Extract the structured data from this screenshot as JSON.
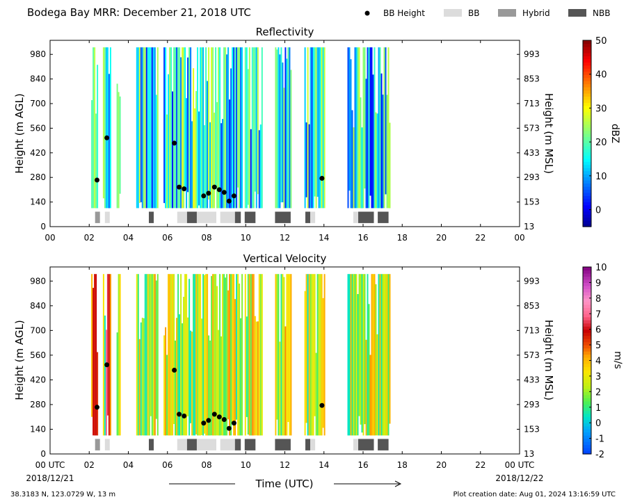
{
  "header": {
    "title": "Bodega Bay MRR:  December 21, 2018 UTC",
    "legend": [
      {
        "label": "BB Height",
        "kind": "dot",
        "color": "#000000"
      },
      {
        "label": "BB",
        "kind": "box",
        "color": "#dcdcdc"
      },
      {
        "label": "Hybrid",
        "kind": "box",
        "color": "#999999"
      },
      {
        "label": "NBB",
        "kind": "box",
        "color": "#555555"
      }
    ]
  },
  "footer": {
    "location": "38.3183 N, 123.0729 W, 13 m",
    "creation": "Plot creation date: Aug 01, 2024 13:16:59 UTC",
    "xlabel": "Time (UTC)",
    "date_left": "2018/12/21",
    "date_right": "2018/12/22"
  },
  "axes": {
    "x_ticks": [
      "00",
      "02",
      "04",
      "06",
      "08",
      "10",
      "12",
      "14",
      "16",
      "18",
      "20",
      "22",
      "00"
    ],
    "x_ticks_bottom": [
      "00 UTC",
      "02",
      "04",
      "06",
      "08",
      "10",
      "12",
      "14",
      "16",
      "18",
      "20",
      "22",
      "00 UTC"
    ],
    "y_ticks_left": [
      "0",
      "140",
      "280",
      "420",
      "560",
      "700",
      "840",
      "980"
    ],
    "y_ticks_right": [
      "13",
      "153",
      "293",
      "433",
      "573",
      "713",
      "853",
      "993"
    ],
    "ylabel_left": "Height (m AGL)",
    "ylabel_right": "Height (m MSL)"
  },
  "chart_data": [
    {
      "type": "heatmap",
      "title": "Reflectivity",
      "xlabel": "Time (UTC)",
      "ylabel": "Height (m AGL)",
      "ylabel_right": "Height (m MSL)",
      "xlim": [
        0,
        24
      ],
      "ylim": [
        0,
        1060
      ],
      "colorbar": {
        "label": "dBZ",
        "ticks": [
          0,
          10,
          20,
          30,
          40,
          50
        ],
        "range": [
          -5,
          50
        ]
      },
      "echo_segments_hours": [
        [
          2.1,
          2.45
        ],
        [
          2.7,
          3.1
        ],
        [
          3.4,
          3.55
        ],
        [
          4.4,
          5.5
        ],
        [
          5.8,
          9.8
        ],
        [
          9.95,
          10.85
        ],
        [
          11.5,
          12.3
        ],
        [
          13.0,
          14.0
        ],
        [
          15.2,
          17.4
        ]
      ],
      "bb_height_points": [
        [
          2.4,
          265
        ],
        [
          2.9,
          505
        ],
        [
          6.35,
          475
        ],
        [
          6.6,
          225
        ],
        [
          6.85,
          215
        ],
        [
          7.85,
          175
        ],
        [
          8.1,
          190
        ],
        [
          8.4,
          225
        ],
        [
          8.65,
          210
        ],
        [
          8.9,
          195
        ],
        [
          9.15,
          145
        ],
        [
          9.4,
          175
        ],
        [
          13.9,
          275
        ]
      ],
      "bb_type_blocks": [
        [
          2.3,
          2.55,
          "Hybrid"
        ],
        [
          2.8,
          3.05,
          "BB"
        ],
        [
          5.05,
          5.3,
          "NBB"
        ],
        [
          6.5,
          7.0,
          "BB"
        ],
        [
          7.0,
          7.5,
          "NBB"
        ],
        [
          7.5,
          8.5,
          "BB"
        ],
        [
          8.7,
          9.45,
          "BB"
        ],
        [
          9.45,
          9.75,
          "NBB"
        ],
        [
          9.95,
          10.5,
          "NBB"
        ],
        [
          11.5,
          12.3,
          "NBB"
        ],
        [
          13.05,
          13.3,
          "NBB"
        ],
        [
          13.3,
          13.55,
          "BB"
        ],
        [
          15.5,
          15.75,
          "BB"
        ],
        [
          15.75,
          16.55,
          "NBB"
        ],
        [
          16.75,
          17.3,
          "NBB"
        ]
      ]
    },
    {
      "type": "heatmap",
      "title": "Vertical Velocity",
      "xlabel": "Time (UTC)",
      "ylabel": "Height (m AGL)",
      "ylabel_right": "Height (m MSL)",
      "xlim": [
        0,
        24
      ],
      "ylim": [
        0,
        1060
      ],
      "colorbar": {
        "label": "m/s",
        "ticks": [
          -2,
          -1,
          0,
          1,
          2,
          3,
          4,
          5,
          6,
          7,
          8,
          9,
          10
        ],
        "range": [
          -2,
          10
        ]
      },
      "echo_segments_hours": [
        [
          2.1,
          2.45
        ],
        [
          2.7,
          3.1
        ],
        [
          3.4,
          3.55
        ],
        [
          4.4,
          5.5
        ],
        [
          5.8,
          9.8
        ],
        [
          9.95,
          10.85
        ],
        [
          11.5,
          12.3
        ],
        [
          13.0,
          14.0
        ],
        [
          15.2,
          17.4
        ]
      ],
      "bb_height_points": [
        [
          2.4,
          265
        ],
        [
          2.9,
          505
        ],
        [
          6.35,
          475
        ],
        [
          6.6,
          225
        ],
        [
          6.85,
          215
        ],
        [
          7.85,
          175
        ],
        [
          8.1,
          190
        ],
        [
          8.4,
          225
        ],
        [
          8.65,
          210
        ],
        [
          8.9,
          195
        ],
        [
          9.15,
          145
        ],
        [
          9.4,
          175
        ],
        [
          13.9,
          275
        ]
      ],
      "bb_type_blocks": [
        [
          2.3,
          2.55,
          "Hybrid"
        ],
        [
          2.8,
          3.05,
          "BB"
        ],
        [
          5.05,
          5.3,
          "NBB"
        ],
        [
          6.5,
          7.0,
          "BB"
        ],
        [
          7.0,
          7.5,
          "NBB"
        ],
        [
          7.5,
          8.5,
          "BB"
        ],
        [
          8.7,
          9.45,
          "BB"
        ],
        [
          9.45,
          9.75,
          "NBB"
        ],
        [
          9.95,
          10.5,
          "NBB"
        ],
        [
          11.5,
          12.3,
          "NBB"
        ],
        [
          13.05,
          13.3,
          "NBB"
        ],
        [
          13.3,
          13.55,
          "BB"
        ],
        [
          15.5,
          15.75,
          "BB"
        ],
        [
          15.75,
          16.55,
          "NBB"
        ],
        [
          16.75,
          17.3,
          "NBB"
        ]
      ]
    }
  ]
}
